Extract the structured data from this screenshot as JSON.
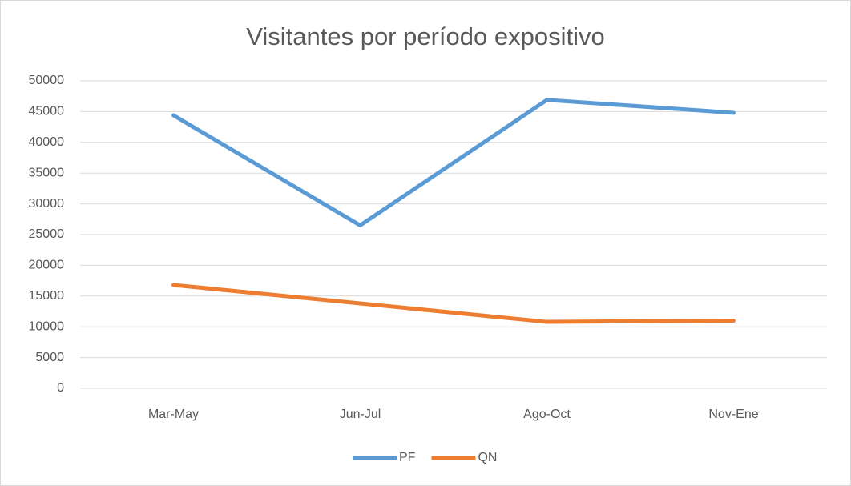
{
  "chart_data": {
    "type": "line",
    "title": "Visitantes por período expositivo",
    "categories": [
      "Mar-May",
      "Jun-Jul",
      "Ago-Oct",
      "Nov-Ene"
    ],
    "series": [
      {
        "name": "PF",
        "color": "#5b9bd5",
        "values": [
          44400,
          26500,
          46900,
          44800
        ]
      },
      {
        "name": "QN",
        "color": "#ed7d31",
        "values": [
          16800,
          13800,
          10800,
          11000
        ]
      }
    ],
    "ylim": [
      0,
      50000
    ],
    "yticks": [
      0,
      5000,
      10000,
      15000,
      20000,
      25000,
      30000,
      35000,
      40000,
      45000,
      50000
    ],
    "grid": true,
    "legend": "bottom"
  }
}
